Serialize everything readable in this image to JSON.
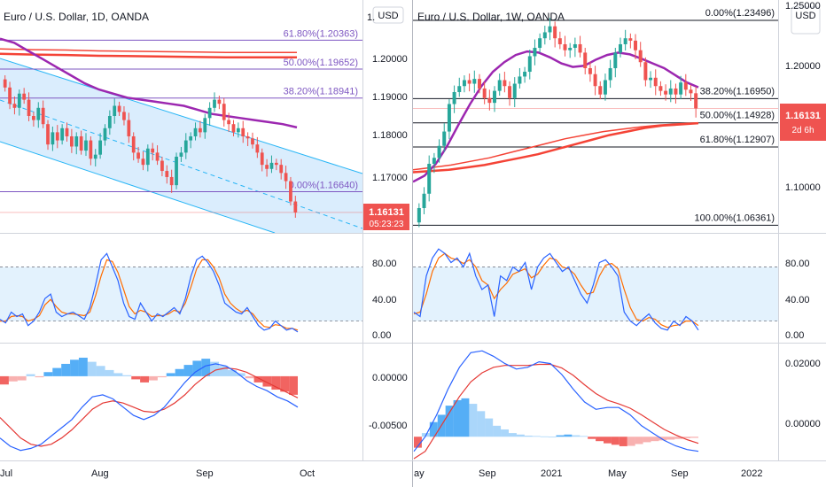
{
  "colors": {
    "fib": "#7e57c2",
    "channel_fill": "#bbdefb",
    "channel_line": "#29b6f6",
    "up": "#26a69a",
    "down": "#ef5350",
    "ma_purple": "#9c27b0",
    "ma_red": "#f44336",
    "stoch_k": "#2962ff",
    "stoch_d": "#ff6d00",
    "stoch_band": "#e3f2fd",
    "macd_line": "#2962ff",
    "signal_line": "#e53935",
    "hist_pos": "#42a5f5",
    "hist_neg": "#ef5350",
    "price_tag": "#ef5350",
    "fib_right": "#131722"
  },
  "left": {
    "title": "Euro / U.S. Dollar, 1D, OANDA",
    "currency": "USD",
    "price_axis": [
      "1.",
      "1.20000",
      "1.19000",
      "1.18000",
      "1.17000"
    ],
    "price_label": "1.16131",
    "countdown": "05:23:23",
    "fib_levels": [
      {
        "label": "61.80%(1.20363)",
        "price": 1.20363
      },
      {
        "label": "50.00%(1.19652)",
        "price": 1.19652
      },
      {
        "label": "38.20%(1.18941)",
        "price": 1.18941
      },
      {
        "label": "0.00%(1.16640)",
        "price": 1.1664
      }
    ],
    "time_axis": [
      "Jul",
      "Aug",
      "Sep",
      "Oct"
    ],
    "stoch_axis": [
      "80.00",
      "40.00",
      "0.00"
    ],
    "macd_axis": [
      "0.00000",
      "-0.00500"
    ]
  },
  "right": {
    "title": "Euro / U.S. Dollar, 1W, OANDA",
    "currency": "USD",
    "price_axis": [
      "1.25000",
      "1.20000",
      "1.10000"
    ],
    "price_label": "1.16131",
    "countdown": "2d 6h",
    "fib_levels": [
      {
        "label": "0.00%(1.23496)",
        "price": 1.23496
      },
      {
        "label": "38.20%(1.16950)",
        "price": 1.1695
      },
      {
        "label": "50.00%(1.14928)",
        "price": 1.14928
      },
      {
        "label": "61.80%(1.12907)",
        "price": 1.12907
      },
      {
        "label": "100.00%(1.06361)",
        "price": 1.06361
      }
    ],
    "time_axis": [
      "ay",
      "Sep",
      "2021",
      "May",
      "Sep",
      "2022"
    ],
    "stoch_axis": [
      "80.00",
      "40.00",
      "0.00"
    ],
    "macd_axis": [
      "0.02000",
      "0.00000"
    ]
  },
  "chart_data": [
    {
      "type": "candlestick",
      "title": "Euro / U.S. Dollar, 1D, OANDA",
      "timeframe": "1D",
      "x_ticks": [
        "Jul",
        "Aug",
        "Sep",
        "Oct"
      ],
      "ylim": [
        1.1565,
        1.2135
      ],
      "close_series": [
        1.192,
        1.188,
        1.187,
        1.1905,
        1.189,
        1.185,
        1.184,
        1.187,
        1.183,
        1.178,
        1.181,
        1.179,
        1.182,
        1.18,
        1.1775,
        1.18,
        1.1765,
        1.179,
        1.1745,
        1.1755,
        1.179,
        1.182,
        1.185,
        1.1875,
        1.186,
        1.184,
        1.18,
        1.176,
        1.1745,
        1.173,
        1.177,
        1.176,
        1.174,
        1.1715,
        1.17,
        1.168,
        1.175,
        1.176,
        1.179,
        1.18,
        1.182,
        1.181,
        1.1845,
        1.187,
        1.189,
        1.188,
        1.184,
        1.183,
        1.181,
        1.182,
        1.18,
        1.1795,
        1.178,
        1.176,
        1.173,
        1.172,
        1.1735,
        1.173,
        1.171,
        1.169,
        1.164,
        1.1613
      ],
      "series": [
        {
          "name": "MA short",
          "values": [
            1.204,
            1.203,
            1.201,
            1.199,
            1.197,
            1.195,
            1.193,
            1.1915,
            1.1905,
            1.1895,
            1.189,
            1.1885,
            1.188,
            1.1875,
            1.1865,
            1.1855,
            1.185,
            1.1845,
            1.184,
            1.1835,
            1.183,
            1.1822
          ]
        },
        {
          "name": "MA long",
          "values": [
            1.2003,
            1.2001,
            1.2,
            1.1998,
            1.1997,
            1.1996,
            1.1995,
            1.1994,
            1.1994,
            1.1994
          ]
        }
      ],
      "stoch_k": [
        22,
        18,
        30,
        25,
        28,
        15,
        20,
        30,
        45,
        50,
        30,
        25,
        28,
        30,
        26,
        22,
        35,
        60,
        88,
        95,
        80,
        65,
        40,
        25,
        22,
        40,
        30,
        20,
        28,
        25,
        30,
        35,
        28,
        45,
        70,
        88,
        92,
        85,
        75,
        60,
        40,
        35,
        30,
        28,
        35,
        25,
        15,
        10,
        12,
        20,
        15,
        10,
        12,
        8
      ],
      "stoch_d": [
        20,
        20,
        25,
        26,
        25,
        20,
        22,
        26,
        38,
        44,
        36,
        30,
        28,
        28,
        27,
        26,
        30,
        48,
        70,
        88,
        86,
        74,
        55,
        36,
        28,
        32,
        30,
        25,
        26,
        26,
        28,
        32,
        30,
        40,
        58,
        78,
        88,
        88,
        80,
        68,
        50,
        40,
        34,
        30,
        32,
        28,
        20,
        14,
        13,
        16,
        15,
        12,
        12,
        10
      ],
      "macd_hist": [
        -0.0008,
        -0.0005,
        -0.0004,
        0.0002,
        -0.0001,
        0.0004,
        0.0008,
        0.0012,
        0.0016,
        0.0018,
        0.0014,
        0.001,
        0.0006,
        0.0003,
        0.0001,
        -0.0003,
        -0.0006,
        -0.0004,
        -0.0001,
        0.0003,
        0.0007,
        0.0011,
        0.0015,
        0.0017,
        0.0014,
        0.001,
        0.0006,
        0.0003,
        -0.0002,
        -0.0006,
        -0.001,
        -0.0013,
        -0.0015,
        -0.0018
      ],
      "macd": [
        -0.006,
        -0.0068,
        -0.0072,
        -0.007,
        -0.0066,
        -0.0058,
        -0.005,
        -0.0042,
        -0.003,
        -0.002,
        -0.0018,
        -0.0022,
        -0.003,
        -0.0038,
        -0.0042,
        -0.0038,
        -0.003,
        -0.0018,
        -0.0006,
        0.0004,
        0.001,
        0.0012,
        0.001,
        0.0004,
        -0.0004,
        -0.001,
        -0.0014,
        -0.002,
        -0.0024,
        -0.003
      ],
      "signal": [
        -0.004,
        -0.005,
        -0.006,
        -0.0066,
        -0.0068,
        -0.0066,
        -0.006,
        -0.0052,
        -0.0042,
        -0.0032,
        -0.0026,
        -0.0024,
        -0.0026,
        -0.003,
        -0.0034,
        -0.0035,
        -0.0032,
        -0.0026,
        -0.0018,
        -0.0008,
        0.0,
        0.0006,
        0.0008,
        0.0007,
        0.0004,
        -0.0001,
        -0.0006,
        -0.0011,
        -0.0016,
        -0.0021
      ]
    },
    {
      "type": "candlestick",
      "title": "Euro / U.S. Dollar, 1W, OANDA",
      "timeframe": "1W",
      "x_ticks": [
        "ay",
        "Sep",
        "2021",
        "May",
        "Sep",
        "2022"
      ],
      "ylim": [
        1.058,
        1.252
      ],
      "close_series": [
        1.078,
        1.09,
        1.115,
        1.12,
        1.13,
        1.142,
        1.165,
        1.175,
        1.18,
        1.185,
        1.182,
        1.186,
        1.178,
        1.17,
        1.166,
        1.176,
        1.185,
        1.18,
        1.17,
        1.182,
        1.188,
        1.192,
        1.205,
        1.212,
        1.22,
        1.225,
        1.23,
        1.22,
        1.215,
        1.21,
        1.212,
        1.215,
        1.208,
        1.195,
        1.19,
        1.18,
        1.173,
        1.185,
        1.195,
        1.208,
        1.215,
        1.22,
        1.218,
        1.21,
        1.2,
        1.185,
        1.187,
        1.18,
        1.176,
        1.173,
        1.178,
        1.173,
        1.183,
        1.177,
        1.174,
        1.1613
      ],
      "series": [
        {
          "name": "MA short",
          "values": [
            1.1,
            1.105,
            1.115,
            1.13,
            1.148,
            1.165,
            1.18,
            1.192,
            1.2,
            1.206,
            1.209,
            1.208,
            1.204,
            1.199,
            1.196,
            1.197,
            1.202,
            1.206,
            1.208,
            1.2065,
            1.203,
            1.199,
            1.195,
            1.189,
            1.183,
            1.179
          ]
        },
        {
          "name": "MA long",
          "values": [
            1.108,
            1.109,
            1.11,
            1.112,
            1.114,
            1.117,
            1.12,
            1.123,
            1.127,
            1.131,
            1.135,
            1.139,
            1.142,
            1.145,
            1.147,
            1.148,
            1.149
          ]
        },
        {
          "name": "MA long 2",
          "values": [
            1.11,
            1.112,
            1.114,
            1.117,
            1.12,
            1.124,
            1.128,
            1.132,
            1.136,
            1.139,
            1.142,
            1.144,
            1.146,
            1.1475,
            1.1485,
            1.1493
          ]
        }
      ],
      "stoch_k": [
        30,
        25,
        70,
        90,
        100,
        95,
        85,
        90,
        80,
        95,
        70,
        55,
        60,
        25,
        70,
        65,
        80,
        75,
        85,
        55,
        80,
        90,
        95,
        85,
        75,
        80,
        65,
        50,
        40,
        60,
        85,
        88,
        80,
        70,
        30,
        20,
        15,
        22,
        28,
        18,
        12,
        10,
        20,
        15,
        25,
        20,
        10
      ],
      "stoch_d": [
        28,
        30,
        50,
        75,
        90,
        95,
        90,
        88,
        84,
        88,
        80,
        65,
        60,
        45,
        55,
        62,
        72,
        75,
        78,
        68,
        72,
        82,
        90,
        88,
        80,
        78,
        72,
        60,
        50,
        52,
        70,
        82,
        84,
        78,
        55,
        35,
        22,
        20,
        24,
        22,
        16,
        13,
        15,
        16,
        20,
        20,
        15
      ],
      "macd_hist": [
        -0.003,
        0.001,
        0.004,
        0.006,
        0.0085,
        0.01,
        0.0105,
        0.009,
        0.007,
        0.005,
        0.003,
        0.002,
        0.001,
        0.0006,
        0.0003,
        0.0002,
        0.0001,
        0.0,
        0.0004,
        0.0006,
        0.0004,
        0.0002,
        -0.0006,
        -0.0012,
        -0.0018,
        -0.0022,
        -0.0026,
        -0.0025,
        -0.002,
        -0.0015,
        -0.0012,
        -0.001,
        -0.0008,
        -0.0006,
        -0.0004,
        -0.0003
      ],
      "macd": [
        -0.004,
        0.0,
        0.006,
        0.013,
        0.019,
        0.023,
        0.0235,
        0.022,
        0.02,
        0.0185,
        0.019,
        0.0205,
        0.02,
        0.017,
        0.013,
        0.0095,
        0.0075,
        0.008,
        0.008,
        0.006,
        0.003,
        0.001,
        -0.001,
        -0.0025,
        -0.0035,
        -0.004
      ],
      "signal": [
        -0.006,
        -0.004,
        0.001,
        0.006,
        0.011,
        0.015,
        0.0175,
        0.019,
        0.0195,
        0.0195,
        0.0195,
        0.0198,
        0.0198,
        0.0188,
        0.0168,
        0.0142,
        0.0118,
        0.01,
        0.009,
        0.0078,
        0.006,
        0.004,
        0.002,
        0.0005,
        -0.0008,
        -0.0018
      ]
    }
  ]
}
